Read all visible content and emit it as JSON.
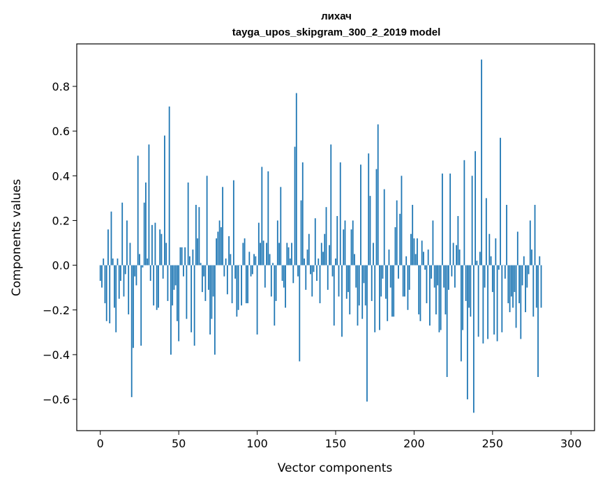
{
  "chart_data": {
    "type": "bar",
    "title": "лихач",
    "subtitle": "tayga_upos_skipgram_300_2_2019 model",
    "xlabel": "Vector components",
    "ylabel": "Components values",
    "xlim": [
      -15,
      315
    ],
    "ylim": [
      -0.74,
      0.99
    ],
    "xticks": [
      0,
      50,
      100,
      150,
      200,
      250,
      300
    ],
    "yticks": [
      -0.6,
      -0.4,
      -0.2,
      0.0,
      0.2,
      0.4,
      0.6,
      0.8
    ],
    "ytick_labels": [
      "−0.6",
      "−0.4",
      "−0.2",
      "0.0",
      "0.2",
      "0.4",
      "0.6",
      "0.8"
    ],
    "grid": false,
    "bar_color": "#1f77b4",
    "x_start": 0,
    "values": [
      -0.07,
      -0.1,
      0.03,
      -0.17,
      -0.25,
      0.16,
      -0.26,
      0.24,
      0.03,
      -0.19,
      -0.3,
      0.03,
      -0.15,
      -0.07,
      0.28,
      -0.14,
      -0.04,
      0.2,
      -0.22,
      0.1,
      -0.59,
      -0.37,
      -0.05,
      -0.09,
      0.49,
      0.05,
      -0.36,
      -0.01,
      0.28,
      0.37,
      0.03,
      0.54,
      -0.07,
      0.18,
      -0.18,
      0.19,
      -0.2,
      -0.19,
      0.16,
      0.14,
      -0.06,
      0.58,
      0.1,
      -0.16,
      0.71,
      -0.4,
      -0.18,
      -0.11,
      -0.09,
      -0.25,
      -0.34,
      0.08,
      0.08,
      -0.05,
      0.08,
      -0.24,
      0.37,
      0.04,
      -0.3,
      0.07,
      -0.36,
      0.27,
      0.12,
      0.26,
      0.01,
      -0.12,
      -0.05,
      -0.16,
      0.4,
      -0.11,
      -0.31,
      -0.24,
      -0.14,
      -0.4,
      0.12,
      0.15,
      0.2,
      0.17,
      0.35,
      -0.05,
      0.03,
      -0.13,
      0.13,
      0.05,
      -0.17,
      0.38,
      -0.06,
      -0.23,
      -0.2,
      0.0,
      -0.18,
      0.1,
      0.12,
      -0.17,
      -0.17,
      0.06,
      -0.05,
      -0.04,
      0.05,
      0.04,
      -0.31,
      0.19,
      0.1,
      0.44,
      0.11,
      -0.1,
      0.1,
      0.42,
      0.05,
      -0.14,
      0.01,
      -0.27,
      -0.16,
      0.2,
      0.1,
      0.35,
      -0.07,
      -0.1,
      -0.19,
      0.1,
      0.08,
      0.03,
      0.1,
      -0.08,
      0.53,
      0.77,
      -0.05,
      -0.43,
      0.29,
      0.46,
      0.03,
      -0.11,
      0.07,
      0.14,
      -0.04,
      -0.14,
      -0.03,
      0.21,
      -0.07,
      0.03,
      -0.17,
      0.1,
      0.06,
      0.14,
      0.26,
      -0.11,
      0.09,
      0.54,
      -0.05,
      -0.27,
      0.03,
      0.22,
      -0.14,
      0.46,
      -0.32,
      0.16,
      0.2,
      -0.15,
      -0.12,
      -0.22,
      0.16,
      0.2,
      0.05,
      -0.1,
      -0.27,
      -0.18,
      0.45,
      -0.24,
      -0.08,
      -0.18,
      -0.61,
      0.5,
      0.31,
      -0.16,
      0.1,
      -0.3,
      0.43,
      0.63,
      -0.29,
      -0.14,
      -0.06,
      0.34,
      -0.15,
      -0.25,
      0.07,
      -0.1,
      -0.23,
      -0.23,
      0.17,
      0.29,
      -0.06,
      0.23,
      0.4,
      -0.14,
      -0.14,
      0.04,
      -0.2,
      -0.11,
      0.14,
      0.27,
      0.12,
      0.05,
      0.12,
      -0.22,
      -0.25,
      0.11,
      0.06,
      -0.02,
      -0.17,
      0.07,
      -0.27,
      -0.06,
      0.2,
      -0.1,
      -0.22,
      -0.09,
      -0.3,
      -0.29,
      0.41,
      -0.1,
      -0.22,
      -0.5,
      -0.11,
      0.41,
      -0.05,
      0.1,
      -0.1,
      0.09,
      0.22,
      0.07,
      -0.43,
      -0.29,
      0.47,
      -0.16,
      -0.6,
      -0.19,
      -0.23,
      0.4,
      -0.66,
      0.51,
      0.02,
      -0.32,
      0.06,
      0.92,
      -0.35,
      -0.1,
      0.3,
      -0.33,
      0.14,
      0.04,
      -0.12,
      -0.31,
      0.12,
      -0.34,
      -0.02,
      0.57,
      -0.3,
      0.0,
      -0.06,
      0.27,
      -0.17,
      -0.21,
      -0.14,
      -0.19,
      -0.12,
      -0.28,
      0.15,
      -0.17,
      -0.33,
      -0.09,
      0.04,
      -0.21,
      -0.1,
      -0.04,
      0.2,
      0.07,
      -0.23,
      0.27,
      -0.19,
      -0.5,
      0.04,
      -0.19
    ]
  }
}
